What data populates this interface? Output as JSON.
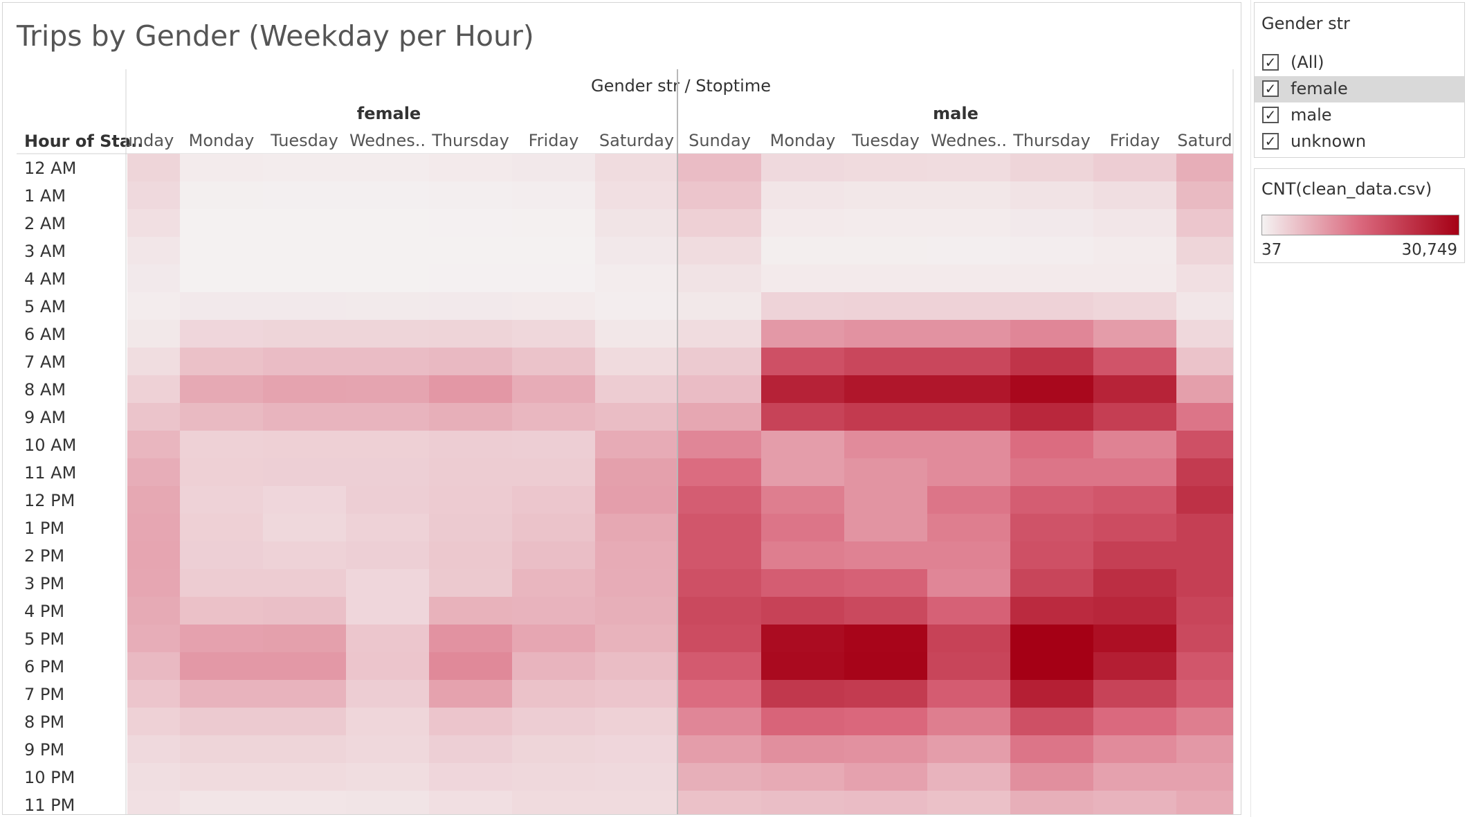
{
  "title": "Trips by Gender (Weekday per Hour)",
  "chart_data": {
    "type": "heatmap",
    "title": "Trips by Gender (Weekday per Hour)",
    "column_header": [
      "Gender str",
      "Stoptime"
    ],
    "row_header": "Hour of Sta..",
    "genders": [
      "female",
      "male"
    ],
    "days": [
      [
        "unday",
        "Monday",
        "Tuesday",
        "Wednes..",
        "Thursday",
        "Friday",
        "Saturday"
      ],
      [
        "Sunday",
        "Monday",
        "Tuesday",
        "Wednes..",
        "Thursday",
        "Friday",
        "Saturd"
      ]
    ],
    "hours": [
      "12 AM",
      "1 AM",
      "2 AM",
      "3 AM",
      "4 AM",
      "5 AM",
      "6 AM",
      "7 AM",
      "8 AM",
      "9 AM",
      "10 AM",
      "11 AM",
      "12 PM",
      "1 PM",
      "2 PM",
      "3 PM",
      "4 PM",
      "5 PM",
      "6 PM",
      "7 PM",
      "8 PM",
      "9 PM",
      "10 PM",
      "11 PM"
    ],
    "values": {
      "female": [
        [
          3300,
          800,
          700,
          700,
          900,
          1100,
          2500
        ],
        [
          2800,
          400,
          350,
          350,
          450,
          550,
          2100
        ],
        [
          2100,
          200,
          180,
          180,
          230,
          280,
          1600
        ],
        [
          1400,
          130,
          120,
          120,
          150,
          180,
          1100
        ],
        [
          1000,
          200,
          190,
          190,
          210,
          230,
          700
        ],
        [
          700,
          1000,
          1000,
          950,
          1000,
          900,
          600
        ],
        [
          1200,
          3100,
          3300,
          3300,
          3400,
          3000,
          1300
        ],
        [
          2400,
          5500,
          6000,
          6000,
          6400,
          5300,
          2600
        ],
        [
          3700,
          8200,
          8800,
          8700,
          10200,
          7800,
          4300
        ],
        [
          5200,
          6300,
          6900,
          6900,
          7500,
          6600,
          5900
        ],
        [
          6700,
          3700,
          3800,
          3800,
          4100,
          4000,
          7900
        ],
        [
          7700,
          3800,
          3900,
          3900,
          4300,
          4300,
          9200
        ],
        [
          8300,
          3600,
          3100,
          4000,
          4400,
          4900,
          9400
        ],
        [
          8500,
          3800,
          2900,
          3600,
          4500,
          5300,
          8300
        ],
        [
          8600,
          3900,
          3600,
          3900,
          4700,
          5800,
          7900
        ],
        [
          8500,
          4300,
          4300,
          3100,
          4600,
          6700,
          7800
        ],
        [
          8100,
          5500,
          5700,
          3100,
          7200,
          7000,
          7500
        ],
        [
          7700,
          9000,
          9200,
          4900,
          10700,
          8500,
          7100
        ],
        [
          6400,
          10000,
          10000,
          5000,
          11700,
          6900,
          5900
        ],
        [
          5000,
          7000,
          7000,
          4100,
          8900,
          5400,
          5000
        ],
        [
          3700,
          4500,
          4500,
          3200,
          5000,
          4100,
          3700
        ],
        [
          2800,
          3300,
          3300,
          2900,
          3900,
          3300,
          3100
        ],
        [
          2300,
          2600,
          2600,
          2400,
          3100,
          2900,
          2800
        ],
        [
          2000,
          1500,
          1500,
          1600,
          2100,
          2600,
          2600
        ]
      ],
      "male": [
        [
          6000,
          2800,
          2600,
          2500,
          3300,
          4100,
          7600
        ],
        [
          5000,
          1500,
          1300,
          1300,
          1700,
          2300,
          6300
        ],
        [
          3800,
          900,
          800,
          800,
          1000,
          1400,
          4900
        ],
        [
          2500,
          500,
          500,
          450,
          600,
          800,
          3300
        ],
        [
          1700,
          900,
          900,
          900,
          900,
          900,
          2100
        ],
        [
          1200,
          3500,
          3600,
          3600,
          3600,
          3200,
          1400
        ],
        [
          2500,
          10000,
          10700,
          10700,
          12000,
          9600,
          2900
        ],
        [
          4500,
          19000,
          20200,
          20200,
          23000,
          18400,
          5300
        ],
        [
          6000,
          25700,
          27500,
          27500,
          29600,
          25600,
          9300
        ],
        [
          8400,
          20800,
          22200,
          22200,
          25000,
          21600,
          14000
        ],
        [
          12000,
          9500,
          11500,
          11500,
          15000,
          12500,
          19000
        ],
        [
          15000,
          9500,
          10500,
          11500,
          14000,
          14000,
          22000
        ],
        [
          17000,
          13000,
          10500,
          14000,
          17000,
          18000,
          23500
        ],
        [
          18000,
          14000,
          10500,
          13000,
          18500,
          19500,
          21500
        ],
        [
          18000,
          13000,
          12500,
          12500,
          19000,
          21500,
          21500
        ],
        [
          19000,
          17000,
          16500,
          12000,
          20500,
          24000,
          21500
        ],
        [
          20000,
          21000,
          20000,
          16500,
          24500,
          25200,
          20500
        ],
        [
          19500,
          29000,
          30000,
          21000,
          30749,
          28500,
          20000
        ],
        [
          17500,
          29200,
          30200,
          20500,
          30700,
          26300,
          18000
        ],
        [
          15000,
          22500,
          22000,
          17200,
          26200,
          20800,
          16800
        ],
        [
          12000,
          16000,
          15500,
          13000,
          19000,
          15300,
          13000
        ],
        [
          9500,
          11000,
          10800,
          9500,
          14000,
          11500,
          10000
        ],
        [
          7500,
          8000,
          9000,
          7000,
          11000,
          9000,
          9000
        ],
        [
          5500,
          5800,
          6000,
          5500,
          7500,
          7000,
          8000
        ]
      ]
    },
    "color_range": [
      37,
      30749
    ],
    "color_min_hex": "#f4f2f2",
    "color_max_hex": "#a50015"
  },
  "filter": {
    "title": "Gender str",
    "items": [
      {
        "label": "(All)",
        "checked": true,
        "selected": false
      },
      {
        "label": "female",
        "checked": true,
        "selected": true
      },
      {
        "label": "male",
        "checked": true,
        "selected": false
      },
      {
        "label": "unknown",
        "checked": true,
        "selected": false
      }
    ]
  },
  "legend": {
    "title": "CNT(clean_data.csv)",
    "min_label": "37",
    "max_label": "30,749"
  }
}
